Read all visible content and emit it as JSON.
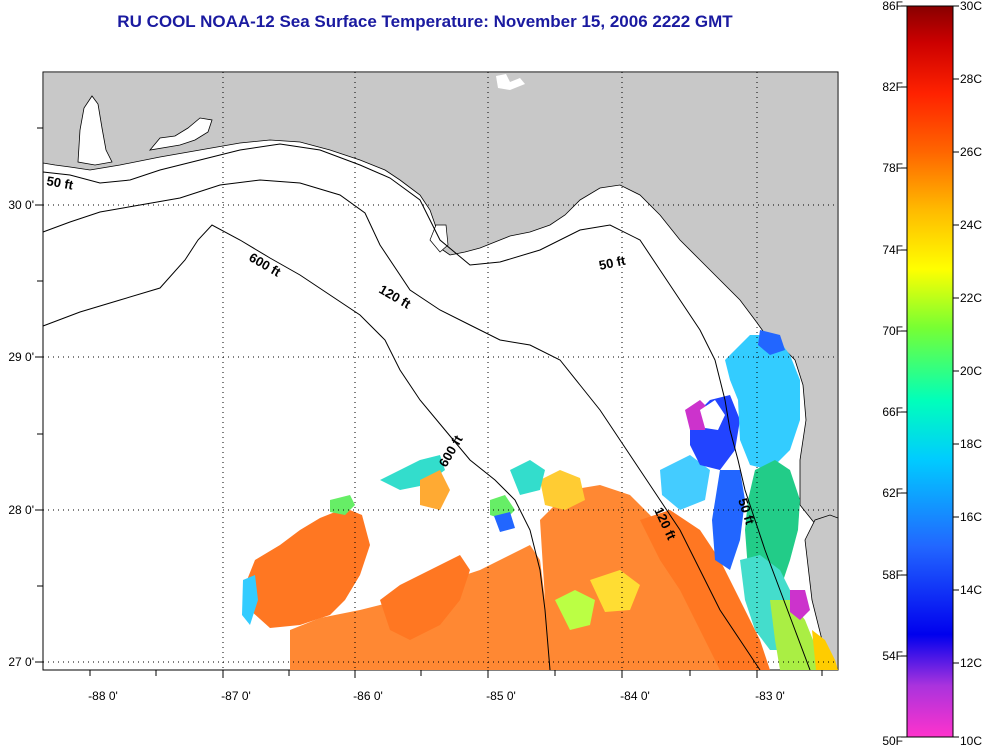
{
  "header": {
    "title": "RU COOL  NOAA-12  Sea Surface Temperature:  November 15, 2006 2222 GMT"
  },
  "map": {
    "lon_ticks": [
      "-88 0'",
      "-87 0'",
      "-86 0'",
      "-85 0'",
      "-84 0'",
      "-83 0'"
    ],
    "lat_ticks": [
      "30 0'",
      "29 0'",
      "28 0'",
      "27 0'"
    ],
    "contours": [
      "50 ft",
      "600 ft",
      "120 ft",
      "50 ft",
      "600 ft",
      "120 ft",
      "50 ft"
    ]
  },
  "colorbar": {
    "fahrenheit": [
      "86F",
      "82F",
      "78F",
      "74F",
      "70F",
      "66F",
      "62F",
      "58F",
      "54F",
      "50F"
    ],
    "celsius": [
      "30C",
      "28C",
      "26C",
      "24C",
      "22C",
      "20C",
      "18C",
      "16C",
      "14C",
      "12C",
      "10C"
    ]
  },
  "colors": {
    "land": "#c8c8c8",
    "water": "#ffffff",
    "title": "#1a1aa0"
  }
}
